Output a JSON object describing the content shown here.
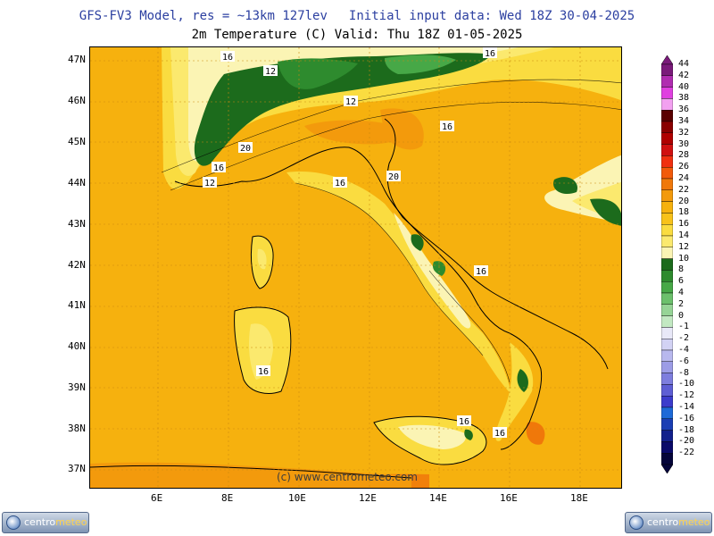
{
  "header": {
    "model": "GFS-FV3 Model, res = ~13km 127lev",
    "init": "Initial input data: Wed 18Z 30-04-2025",
    "field": "2m Temperature (C)  Valid: Thu 18Z 01-05-2025"
  },
  "map": {
    "lat_labels": [
      "47N",
      "46N",
      "45N",
      "44N",
      "43N",
      "42N",
      "41N",
      "40N",
      "39N",
      "38N",
      "37N"
    ],
    "lon_labels": [
      "6E",
      "8E",
      "10E",
      "12E",
      "14E",
      "16E",
      "18E"
    ],
    "contour_labels": [
      "16",
      "12",
      "12",
      "16",
      "20",
      "16",
      "12",
      "16",
      "20",
      "16",
      "16",
      "16",
      "16",
      "16"
    ],
    "watermark": "(c) www.centrometeo.com"
  },
  "colorbar": {
    "ticks": [
      "44",
      "42",
      "40",
      "38",
      "36",
      "34",
      "32",
      "30",
      "28",
      "26",
      "24",
      "22",
      "20",
      "18",
      "16",
      "14",
      "12",
      "10",
      "8",
      "6",
      "4",
      "2",
      "0",
      "-1",
      "-2",
      "-4",
      "-6",
      "-8",
      "-10",
      "-12",
      "-14",
      "-16",
      "-18",
      "-20",
      "-22"
    ],
    "colors": [
      "#7a1a7a",
      "#b02cb0",
      "#e040e0",
      "#f2a0f0",
      "#5a0000",
      "#8a0000",
      "#b00000",
      "#d01010",
      "#f03010",
      "#f25a0a",
      "#f0780a",
      "#f39a0c",
      "#f6b10e",
      "#f8c21a",
      "#fadc40",
      "#fbe96e",
      "#fbf4b4",
      "#1c6b1c",
      "#2e8b2e",
      "#47a847",
      "#6cc06c",
      "#96d496",
      "#c2e8c2",
      "#e8e8f8",
      "#d2d2f4",
      "#b8b8ee",
      "#9c9ce6",
      "#7e7ede",
      "#5e5ed4",
      "#3c3ccc",
      "#1e6ad8",
      "#1a3eb4",
      "#12208c",
      "#0a0a6a",
      "#05053a"
    ]
  },
  "logo": {
    "pre": "centro",
    "post": "meteo"
  }
}
